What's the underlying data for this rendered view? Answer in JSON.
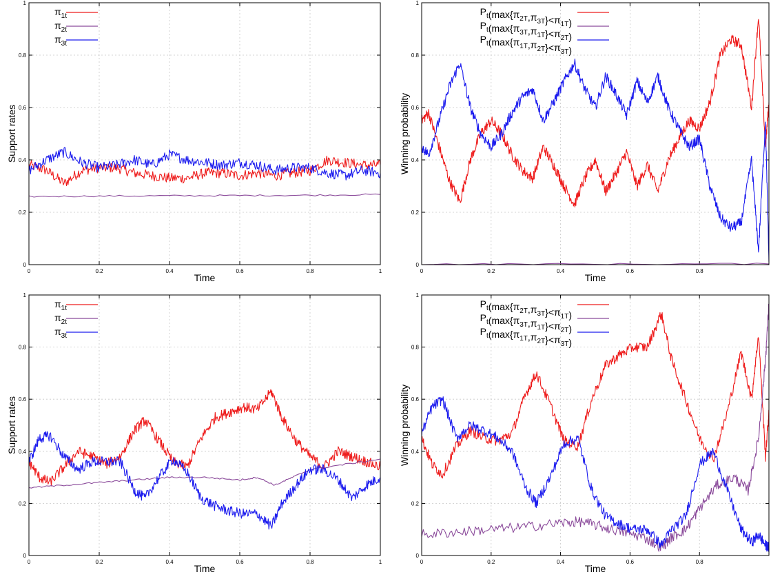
{
  "colors": {
    "pi1": "#ee1c1c",
    "pi2": "#8b4b9b",
    "pi3": "#1c1cee",
    "grid": "#c8c8c8",
    "axis": "#000000"
  },
  "chart_data": [
    {
      "type": "line",
      "title": "",
      "xlabel": "Time",
      "ylabel": "Support rates",
      "xlim": [
        0,
        1
      ],
      "ylim": [
        0,
        1
      ],
      "xticks": [
        "0",
        "0.2",
        "0.4",
        "0.6",
        "0.8",
        "1"
      ],
      "yticks": [
        "0",
        "0.2",
        "0.4",
        "0.6",
        "0.8",
        "1"
      ],
      "grid": true,
      "legend_position": "top-left",
      "series": [
        {
          "name": "π1t",
          "base": "π",
          "sub": "1t",
          "color": "#ee1c1c",
          "x": [
            0,
            0.05,
            0.1,
            0.15,
            0.2,
            0.25,
            0.3,
            0.35,
            0.4,
            0.45,
            0.5,
            0.55,
            0.6,
            0.65,
            0.7,
            0.75,
            0.8,
            0.85,
            0.9,
            0.95,
            1
          ],
          "y": [
            0.38,
            0.36,
            0.31,
            0.36,
            0.37,
            0.37,
            0.35,
            0.34,
            0.33,
            0.33,
            0.35,
            0.35,
            0.34,
            0.35,
            0.34,
            0.35,
            0.36,
            0.4,
            0.39,
            0.38,
            0.38
          ]
        },
        {
          "name": "π2t",
          "base": "π",
          "sub": "2t",
          "color": "#8b4b9b",
          "x": [
            0,
            0.2,
            0.4,
            0.6,
            0.8,
            1
          ],
          "y": [
            0.26,
            0.262,
            0.263,
            0.264,
            0.265,
            0.268
          ]
        },
        {
          "name": "π3t",
          "base": "π",
          "sub": "3t",
          "color": "#1c1cee",
          "x": [
            0,
            0.05,
            0.1,
            0.15,
            0.2,
            0.25,
            0.3,
            0.35,
            0.4,
            0.45,
            0.5,
            0.55,
            0.6,
            0.65,
            0.7,
            0.75,
            0.8,
            0.85,
            0.9,
            0.95,
            1
          ],
          "y": [
            0.36,
            0.4,
            0.43,
            0.39,
            0.37,
            0.38,
            0.4,
            0.38,
            0.42,
            0.4,
            0.39,
            0.38,
            0.39,
            0.38,
            0.36,
            0.37,
            0.37,
            0.35,
            0.34,
            0.36,
            0.35
          ]
        }
      ]
    },
    {
      "type": "line",
      "title": "",
      "xlabel": "Time",
      "ylabel": "Winning probability",
      "xlim": [
        0,
        1
      ],
      "ylim": [
        0,
        1
      ],
      "xticks": [
        "0",
        "0.2",
        "0.4",
        "0.6",
        "0.8",
        ""
      ],
      "yticks": [
        "0",
        "0.2",
        "0.4",
        "0.6",
        "0.8",
        "1"
      ],
      "grid": true,
      "legend_position": "top-left",
      "series": [
        {
          "name": "Pt(max{π2T,π3T}<π1T)",
          "parts": [
            [
              "P",
              ""
            ],
            [
              "t",
              "sub"
            ],
            [
              "(max{π",
              ""
            ],
            [
              "2T",
              "sub"
            ],
            [
              ",π",
              ""
            ],
            [
              "3T",
              "sub"
            ],
            [
              "}<π",
              ""
            ],
            [
              "1T",
              "sub"
            ],
            [
              ")",
              ""
            ]
          ],
          "color": "#ee1c1c",
          "x": [
            0,
            0.02,
            0.05,
            0.08,
            0.11,
            0.14,
            0.17,
            0.2,
            0.23,
            0.26,
            0.29,
            0.32,
            0.35,
            0.38,
            0.41,
            0.44,
            0.47,
            0.5,
            0.53,
            0.56,
            0.59,
            0.62,
            0.65,
            0.68,
            0.71,
            0.74,
            0.77,
            0.8,
            0.83,
            0.86,
            0.89,
            0.92,
            0.95,
            0.97,
            0.99,
            1
          ],
          "y": [
            0.55,
            0.58,
            0.45,
            0.32,
            0.24,
            0.4,
            0.5,
            0.55,
            0.5,
            0.42,
            0.36,
            0.33,
            0.45,
            0.38,
            0.3,
            0.23,
            0.33,
            0.4,
            0.28,
            0.35,
            0.43,
            0.3,
            0.38,
            0.28,
            0.4,
            0.48,
            0.55,
            0.52,
            0.62,
            0.8,
            0.86,
            0.84,
            0.6,
            0.95,
            0.45,
            0.62
          ]
        },
        {
          "name": "Pt(max{π3T,π1T}<π2T)",
          "parts": [
            [
              "P",
              ""
            ],
            [
              "t",
              "sub"
            ],
            [
              "(max{π",
              ""
            ],
            [
              "3T",
              "sub"
            ],
            [
              ",π",
              ""
            ],
            [
              "1T",
              "sub"
            ],
            [
              "}<π",
              ""
            ],
            [
              "2T",
              "sub"
            ],
            [
              ")",
              ""
            ]
          ],
          "color": "#8b4b9b",
          "x": [
            0,
            0.5,
            1
          ],
          "y": [
            0.002,
            0.002,
            0.003
          ]
        },
        {
          "name": "Pt(max{π1T,π2T}<π3T)",
          "parts": [
            [
              "P",
              ""
            ],
            [
              "t",
              "sub"
            ],
            [
              "(max{π",
              ""
            ],
            [
              "1T",
              "sub"
            ],
            [
              ",π",
              ""
            ],
            [
              "2T",
              "sub"
            ],
            [
              "}<π",
              ""
            ],
            [
              "3T",
              "sub"
            ],
            [
              ")",
              ""
            ]
          ],
          "color": "#1c1cee",
          "x": [
            0,
            0.02,
            0.05,
            0.08,
            0.11,
            0.14,
            0.17,
            0.2,
            0.23,
            0.26,
            0.29,
            0.32,
            0.35,
            0.38,
            0.41,
            0.44,
            0.47,
            0.5,
            0.53,
            0.56,
            0.59,
            0.62,
            0.65,
            0.68,
            0.71,
            0.74,
            0.77,
            0.8,
            0.83,
            0.86,
            0.89,
            0.92,
            0.95,
            0.97,
            0.99,
            1
          ],
          "y": [
            0.45,
            0.42,
            0.55,
            0.68,
            0.77,
            0.6,
            0.5,
            0.45,
            0.5,
            0.58,
            0.64,
            0.67,
            0.55,
            0.62,
            0.7,
            0.77,
            0.67,
            0.6,
            0.72,
            0.65,
            0.57,
            0.7,
            0.62,
            0.72,
            0.6,
            0.52,
            0.45,
            0.48,
            0.3,
            0.18,
            0.14,
            0.16,
            0.4,
            0.05,
            0.55,
            0.01
          ]
        }
      ]
    },
    {
      "type": "line",
      "title": "",
      "xlabel": "Time",
      "ylabel": "Support rates",
      "xlim": [
        0,
        1
      ],
      "ylim": [
        0,
        1
      ],
      "xticks": [
        "0",
        "0.2",
        "0.4",
        "0.6",
        "0.8",
        "1"
      ],
      "yticks": [
        "0",
        "0.2",
        "0.4",
        "0.6",
        "0.8",
        "1"
      ],
      "grid": true,
      "legend_position": "top-left",
      "series": [
        {
          "name": "π1t",
          "base": "π",
          "sub": "1t",
          "color": "#ee1c1c",
          "x": [
            0,
            0.03,
            0.06,
            0.1,
            0.14,
            0.18,
            0.22,
            0.26,
            0.3,
            0.33,
            0.37,
            0.41,
            0.45,
            0.49,
            0.53,
            0.57,
            0.61,
            0.65,
            0.69,
            0.72,
            0.76,
            0.8,
            0.84,
            0.88,
            0.92,
            0.96,
            1
          ],
          "y": [
            0.36,
            0.3,
            0.28,
            0.34,
            0.4,
            0.38,
            0.35,
            0.38,
            0.48,
            0.52,
            0.44,
            0.36,
            0.34,
            0.45,
            0.53,
            0.55,
            0.57,
            0.56,
            0.63,
            0.53,
            0.44,
            0.38,
            0.34,
            0.4,
            0.38,
            0.36,
            0.34
          ]
        },
        {
          "name": "π2t",
          "base": "π",
          "sub": "2t",
          "color": "#8b4b9b",
          "x": [
            0,
            0.1,
            0.2,
            0.3,
            0.4,
            0.5,
            0.6,
            0.65,
            0.7,
            0.75,
            0.8,
            0.9,
            1
          ],
          "y": [
            0.26,
            0.27,
            0.28,
            0.29,
            0.3,
            0.3,
            0.29,
            0.3,
            0.27,
            0.3,
            0.33,
            0.35,
            0.37
          ]
        },
        {
          "name": "π3t",
          "base": "π",
          "sub": "3t",
          "color": "#1c1cee",
          "x": [
            0,
            0.03,
            0.06,
            0.1,
            0.14,
            0.18,
            0.22,
            0.26,
            0.3,
            0.33,
            0.37,
            0.41,
            0.45,
            0.49,
            0.53,
            0.57,
            0.61,
            0.65,
            0.69,
            0.72,
            0.76,
            0.8,
            0.84,
            0.88,
            0.92,
            0.96,
            1
          ],
          "y": [
            0.36,
            0.45,
            0.46,
            0.38,
            0.33,
            0.36,
            0.36,
            0.36,
            0.25,
            0.22,
            0.3,
            0.37,
            0.32,
            0.22,
            0.19,
            0.17,
            0.16,
            0.16,
            0.11,
            0.2,
            0.27,
            0.33,
            0.33,
            0.29,
            0.22,
            0.27,
            0.3
          ]
        }
      ]
    },
    {
      "type": "line",
      "title": "",
      "xlabel": "Time",
      "ylabel": "Winning probability",
      "xlim": [
        0,
        1
      ],
      "ylim": [
        0,
        1
      ],
      "xticks": [
        "0",
        "0.2",
        "0.4",
        "0.6",
        "0.8",
        ""
      ],
      "yticks": [
        "0",
        "0.2",
        "0.4",
        "0.6",
        "0.8",
        "1"
      ],
      "grid": true,
      "legend_position": "top-left",
      "series": [
        {
          "name": "Pt(max{π2T,π3T}<π1T)",
          "parts": [
            [
              "P",
              ""
            ],
            [
              "t",
              "sub"
            ],
            [
              "(max{π",
              ""
            ],
            [
              "2T",
              "sub"
            ],
            [
              ",π",
              ""
            ],
            [
              "3T",
              "sub"
            ],
            [
              "}<π",
              ""
            ],
            [
              "1T",
              "sub"
            ],
            [
              ")",
              ""
            ]
          ],
          "color": "#ee1c1c",
          "x": [
            0,
            0.03,
            0.06,
            0.1,
            0.14,
            0.18,
            0.22,
            0.26,
            0.3,
            0.33,
            0.37,
            0.41,
            0.45,
            0.49,
            0.53,
            0.57,
            0.61,
            0.65,
            0.69,
            0.72,
            0.76,
            0.8,
            0.84,
            0.88,
            0.92,
            0.95,
            0.97,
            0.99,
            1
          ],
          "y": [
            0.45,
            0.35,
            0.31,
            0.42,
            0.48,
            0.45,
            0.44,
            0.47,
            0.62,
            0.7,
            0.58,
            0.44,
            0.42,
            0.6,
            0.73,
            0.77,
            0.8,
            0.8,
            0.93,
            0.75,
            0.6,
            0.45,
            0.37,
            0.55,
            0.78,
            0.6,
            0.85,
            0.38,
            0.55
          ]
        },
        {
          "name": "Pt(max{π3T,π1T}<π2T)",
          "parts": [
            [
              "P",
              ""
            ],
            [
              "t",
              "sub"
            ],
            [
              "(max{π",
              ""
            ],
            [
              "3T",
              "sub"
            ],
            [
              ",π",
              ""
            ],
            [
              "1T",
              "sub"
            ],
            [
              "}<π",
              ""
            ],
            [
              "2T",
              "sub"
            ],
            [
              ")",
              ""
            ]
          ],
          "color": "#8b4b9b",
          "x": [
            0,
            0.1,
            0.2,
            0.3,
            0.4,
            0.46,
            0.52,
            0.58,
            0.64,
            0.69,
            0.72,
            0.76,
            0.8,
            0.85,
            0.9,
            0.94,
            0.97,
            0.99,
            1
          ],
          "y": [
            0.08,
            0.09,
            0.1,
            0.11,
            0.125,
            0.13,
            0.11,
            0.09,
            0.07,
            0.03,
            0.07,
            0.1,
            0.18,
            0.27,
            0.3,
            0.25,
            0.45,
            0.75,
            0.97
          ]
        },
        {
          "name": "Pt(max{π1T,π2T}<π3T)",
          "parts": [
            [
              "P",
              ""
            ],
            [
              "t",
              "sub"
            ],
            [
              "(max{π",
              ""
            ],
            [
              "1T",
              "sub"
            ],
            [
              ",π",
              ""
            ],
            [
              "2T",
              "sub"
            ],
            [
              "}<π",
              ""
            ],
            [
              "3T",
              "sub"
            ],
            [
              ")",
              ""
            ]
          ],
          "color": "#1c1cee",
          "x": [
            0,
            0.03,
            0.06,
            0.1,
            0.14,
            0.18,
            0.22,
            0.26,
            0.3,
            0.33,
            0.37,
            0.41,
            0.45,
            0.49,
            0.53,
            0.57,
            0.61,
            0.65,
            0.69,
            0.72,
            0.76,
            0.8,
            0.84,
            0.88,
            0.92,
            0.95,
            0.97,
            0.99,
            1
          ],
          "y": [
            0.47,
            0.57,
            0.6,
            0.45,
            0.5,
            0.48,
            0.45,
            0.4,
            0.26,
            0.2,
            0.3,
            0.43,
            0.45,
            0.25,
            0.15,
            0.12,
            0.1,
            0.1,
            0.04,
            0.1,
            0.15,
            0.35,
            0.4,
            0.25,
            0.1,
            0.05,
            0.08,
            0.04,
            0.03
          ]
        }
      ]
    }
  ]
}
